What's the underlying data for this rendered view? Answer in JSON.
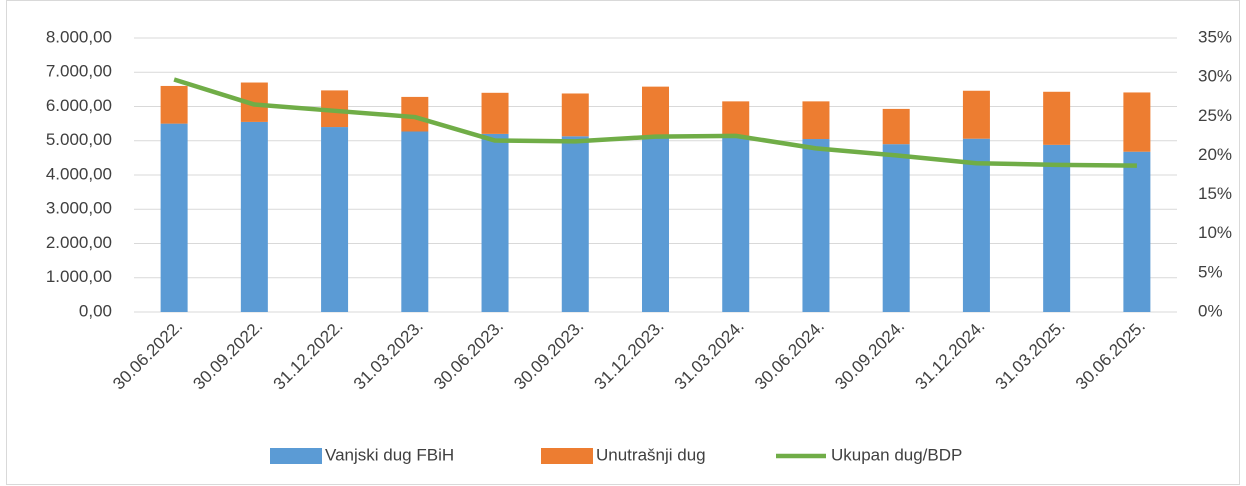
{
  "chart_data": {
    "type": "bar",
    "categories": [
      "30.06.2022.",
      "30.09.2022.",
      "31.12.2022.",
      "31.03.2023.",
      "30.06.2023.",
      "30.09.2023.",
      "31.12.2023.",
      "31.03.2024.",
      "30.06.2024.",
      "30.09.2024.",
      "31.12.2024.",
      "31.03.2025.",
      "30.06.2025."
    ],
    "series": [
      {
        "name": "Vanjski dug FBiH",
        "color": "#5b9bd5",
        "type": "bar",
        "values": [
          5500,
          5550,
          5400,
          5270,
          5200,
          5130,
          5100,
          5150,
          5050,
          4900,
          5060,
          4880,
          4680
        ]
      },
      {
        "name": "Unutrašnji dug",
        "color": "#ed7d31",
        "type": "bar",
        "values": [
          1100,
          1150,
          1070,
          1010,
          1200,
          1250,
          1480,
          1000,
          1100,
          1030,
          1400,
          1550,
          1730
        ]
      },
      {
        "name": "Ukupan dug/BDP",
        "color": "#70ad47",
        "type": "line",
        "axis": "y2",
        "values": [
          29.7,
          26.5,
          25.7,
          24.9,
          21.9,
          21.8,
          22.4,
          22.5,
          20.9,
          20.0,
          19.0,
          18.8,
          18.7
        ]
      }
    ],
    "stacked": true,
    "ylim": [
      0,
      8000
    ],
    "yticks": [
      {
        "value": 0,
        "label": "0,00"
      },
      {
        "value": 1000,
        "label": "1.000,00"
      },
      {
        "value": 2000,
        "label": "2.000,00"
      },
      {
        "value": 3000,
        "label": "3.000,00"
      },
      {
        "value": 4000,
        "label": "4.000,00"
      },
      {
        "value": 5000,
        "label": "5.000,00"
      },
      {
        "value": 6000,
        "label": "6.000,00"
      },
      {
        "value": 7000,
        "label": "7.000,00"
      },
      {
        "value": 8000,
        "label": "8.000,00"
      }
    ],
    "y2lim": [
      0,
      35
    ],
    "y2ticks": [
      {
        "value": 0,
        "label": "0%"
      },
      {
        "value": 5,
        "label": "5%"
      },
      {
        "value": 10,
        "label": "10%"
      },
      {
        "value": 15,
        "label": "15%"
      },
      {
        "value": 20,
        "label": "20%"
      },
      {
        "value": 25,
        "label": "25%"
      },
      {
        "value": 30,
        "label": "30%"
      },
      {
        "value": 35,
        "label": "35%"
      }
    ],
    "grid": true,
    "legend": "bottom"
  }
}
